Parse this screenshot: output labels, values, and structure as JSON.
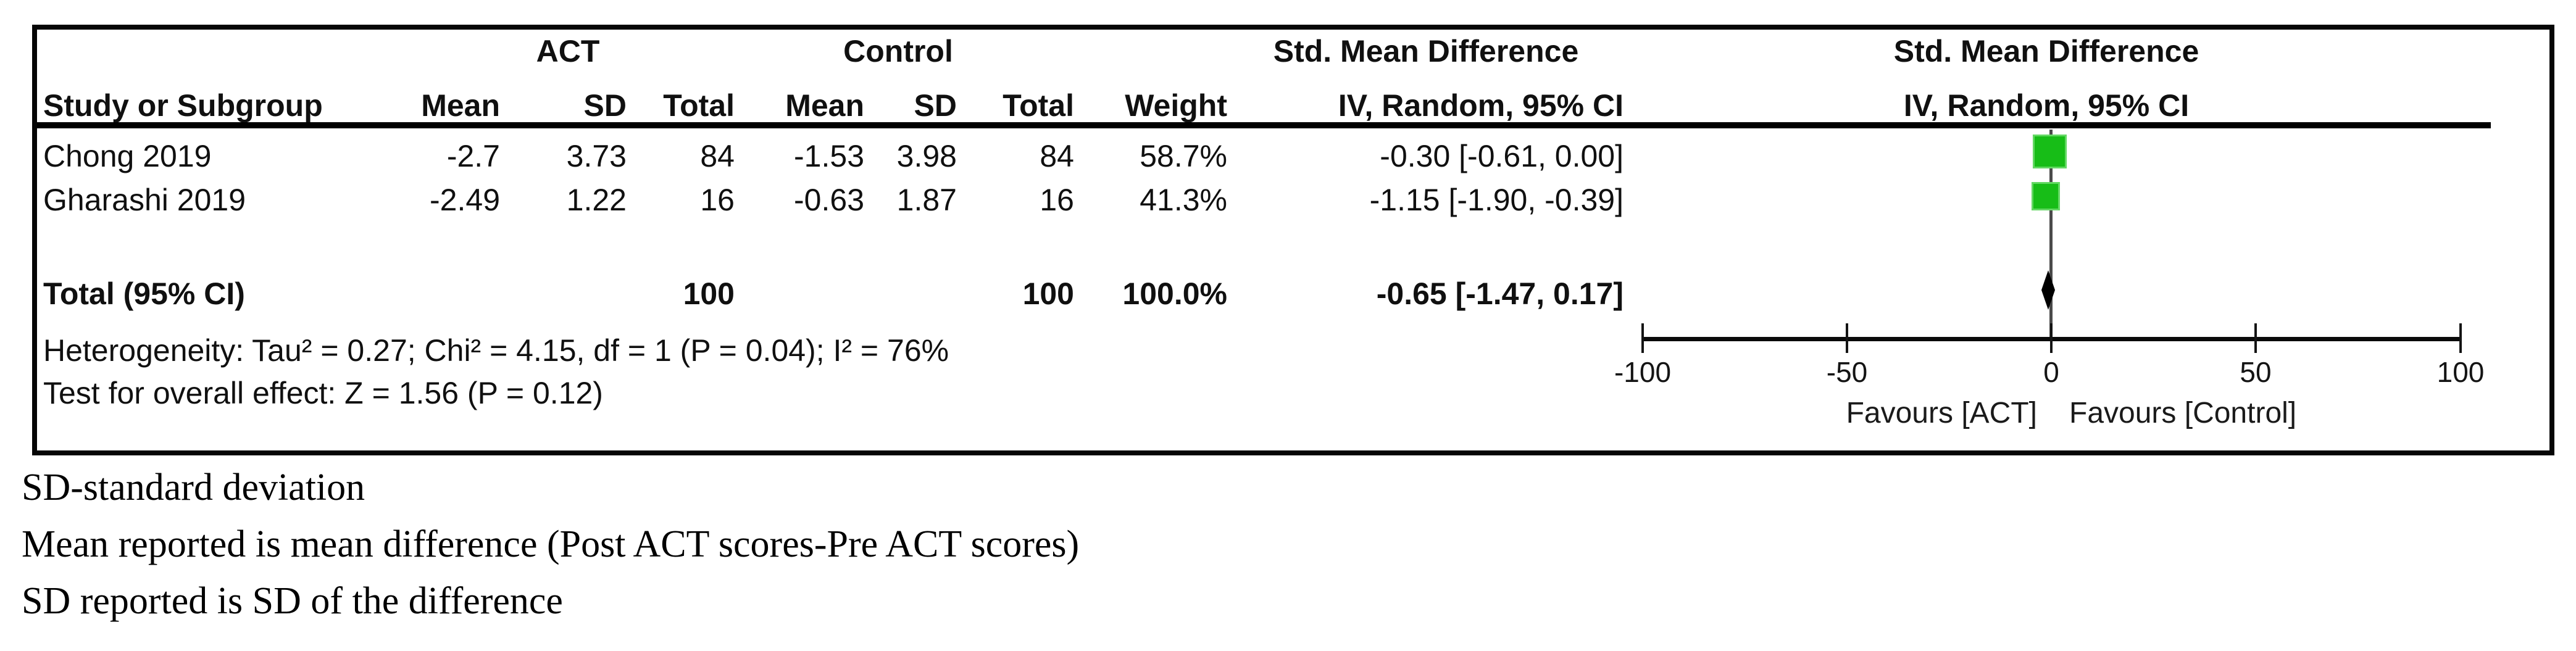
{
  "headers": {
    "group": {
      "act": "ACT",
      "control": "Control",
      "smd": "Std. Mean Difference"
    },
    "cols": {
      "study": "Study or Subgroup",
      "mean": "Mean",
      "sd": "SD",
      "total": "Total",
      "weight": "Weight",
      "iv": "IV, Random, 95% CI"
    }
  },
  "rows": [
    {
      "name": "Chong 2019",
      "act_mean": "-2.7",
      "act_sd": "3.73",
      "act_total": "84",
      "c_mean": "-1.53",
      "c_sd": "3.98",
      "c_total": "84",
      "weight": "58.7%",
      "ci": "-0.30 [-0.61, 0.00]"
    },
    {
      "name": "Gharashi 2019",
      "act_mean": "-2.49",
      "act_sd": "1.22",
      "act_total": "16",
      "c_mean": "-0.63",
      "c_sd": "1.87",
      "c_total": "16",
      "weight": "41.3%",
      "ci": "-1.15 [-1.90, -0.39]"
    }
  ],
  "total": {
    "label": "Total (95% CI)",
    "act_total": "100",
    "c_total": "100",
    "weight": "100.0%",
    "ci": "-0.65 [-1.47, 0.17]"
  },
  "stats": {
    "heterogeneity": "Heterogeneity: Tau² = 0.27; Chi² = 4.15, df = 1 (P = 0.04); I² = 76%",
    "overall": "Test for overall effect: Z = 1.56 (P = 0.12)"
  },
  "axis": {
    "tick_labels": [
      "-100",
      "-50",
      "0",
      "50",
      "100"
    ],
    "favours_left": "Favours [ACT]",
    "favours_right": "Favours [Control]"
  },
  "footnotes": [
    "SD-standard deviation",
    "Mean reported is mean difference (Post ACT scores-Pre ACT scores)",
    "SD reported is SD of the difference"
  ],
  "colors": {
    "marker_green": "#17bd17",
    "marker_green_edge": "#63d863",
    "diamond_black": "#000000",
    "line_gray": "#4a4a4a"
  },
  "chart_data": {
    "type": "scatter",
    "subtype": "forest-plot",
    "title": "Std. Mean Difference, IV, Random, 95% CI",
    "effect_measure": "Std. Mean Difference",
    "model": "IV, Random, 95% CI",
    "xlim": [
      -100,
      100
    ],
    "x_ticks": [
      -100,
      -50,
      0,
      50,
      100
    ],
    "grid": false,
    "studies": [
      {
        "label": "Chong 2019",
        "act": {
          "mean": -2.7,
          "sd": 3.73,
          "total": 84
        },
        "control": {
          "mean": -1.53,
          "sd": 3.98,
          "total": 84
        },
        "weight_pct": 58.7,
        "smd": -0.3,
        "ci": [
          -0.61,
          0.0
        ]
      },
      {
        "label": "Gharashi 2019",
        "act": {
          "mean": -2.49,
          "sd": 1.22,
          "total": 16
        },
        "control": {
          "mean": -0.63,
          "sd": 1.87,
          "total": 16
        },
        "weight_pct": 41.3,
        "smd": -1.15,
        "ci": [
          -1.9,
          -0.39
        ]
      }
    ],
    "total": {
      "label": "Total (95% CI)",
      "act_total": 100,
      "control_total": 100,
      "weight_pct": 100.0,
      "smd": -0.65,
      "ci": [
        -1.47,
        0.17
      ]
    },
    "heterogeneity": {
      "tau2": 0.27,
      "chi2": 4.15,
      "df": 1,
      "p": 0.04,
      "i2_pct": 76
    },
    "overall_effect": {
      "z": 1.56,
      "p": 0.12
    },
    "favours": [
      "Favours [ACT]",
      "Favours [Control]"
    ]
  }
}
